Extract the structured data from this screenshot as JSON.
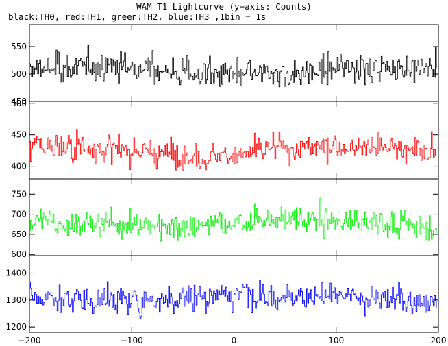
{
  "title": "WAM T1 Lightcurve (y−axis: Counts)",
  "subtitle": "black:TH0, red:TH1, green:TH2, blue:TH3 ,1bin = 1s",
  "chart_data": {
    "type": "line",
    "layout": "4 stacked panels sharing x-axis",
    "x_range": [
      -200,
      200
    ],
    "bin_seconds": 1,
    "x_ticks": [
      -200,
      -100,
      0,
      100,
      200
    ],
    "x_tick_labels": [
      "−200",
      "−100",
      "0",
      "100",
      "200"
    ],
    "series": [
      {
        "name": "TH0",
        "color": "#000000",
        "mean": 505,
        "noise": 18,
        "drift": 18,
        "ylim": [
          450,
          590
        ],
        "y_ticks": [
          450,
          500,
          550
        ],
        "y_tick_labels": [
          "450",
          "500",
          "550"
        ]
      },
      {
        "name": "TH1",
        "color": "#ff0000",
        "mean": 425,
        "noise": 15,
        "drift": 14,
        "ylim": [
          380,
          503
        ],
        "y_ticks": [
          400,
          450,
          500
        ],
        "y_tick_labels": [
          "400",
          "450",
          "500"
        ]
      },
      {
        "name": "TH2",
        "color": "#00ee00",
        "mean": 678,
        "noise": 24,
        "drift": 14,
        "ylim": [
          597,
          788
        ],
        "y_ticks": [
          600,
          650,
          700,
          750
        ],
        "y_tick_labels": [
          "600",
          "650",
          "700",
          "750"
        ]
      },
      {
        "name": "TH3",
        "color": "#0000ff",
        "mean": 1310,
        "noise": 36,
        "drift": 22,
        "ylim": [
          1180,
          1465
        ],
        "y_ticks": [
          1200,
          1300,
          1400
        ],
        "y_tick_labels": [
          "1200",
          "1300",
          "1400"
        ]
      }
    ]
  }
}
